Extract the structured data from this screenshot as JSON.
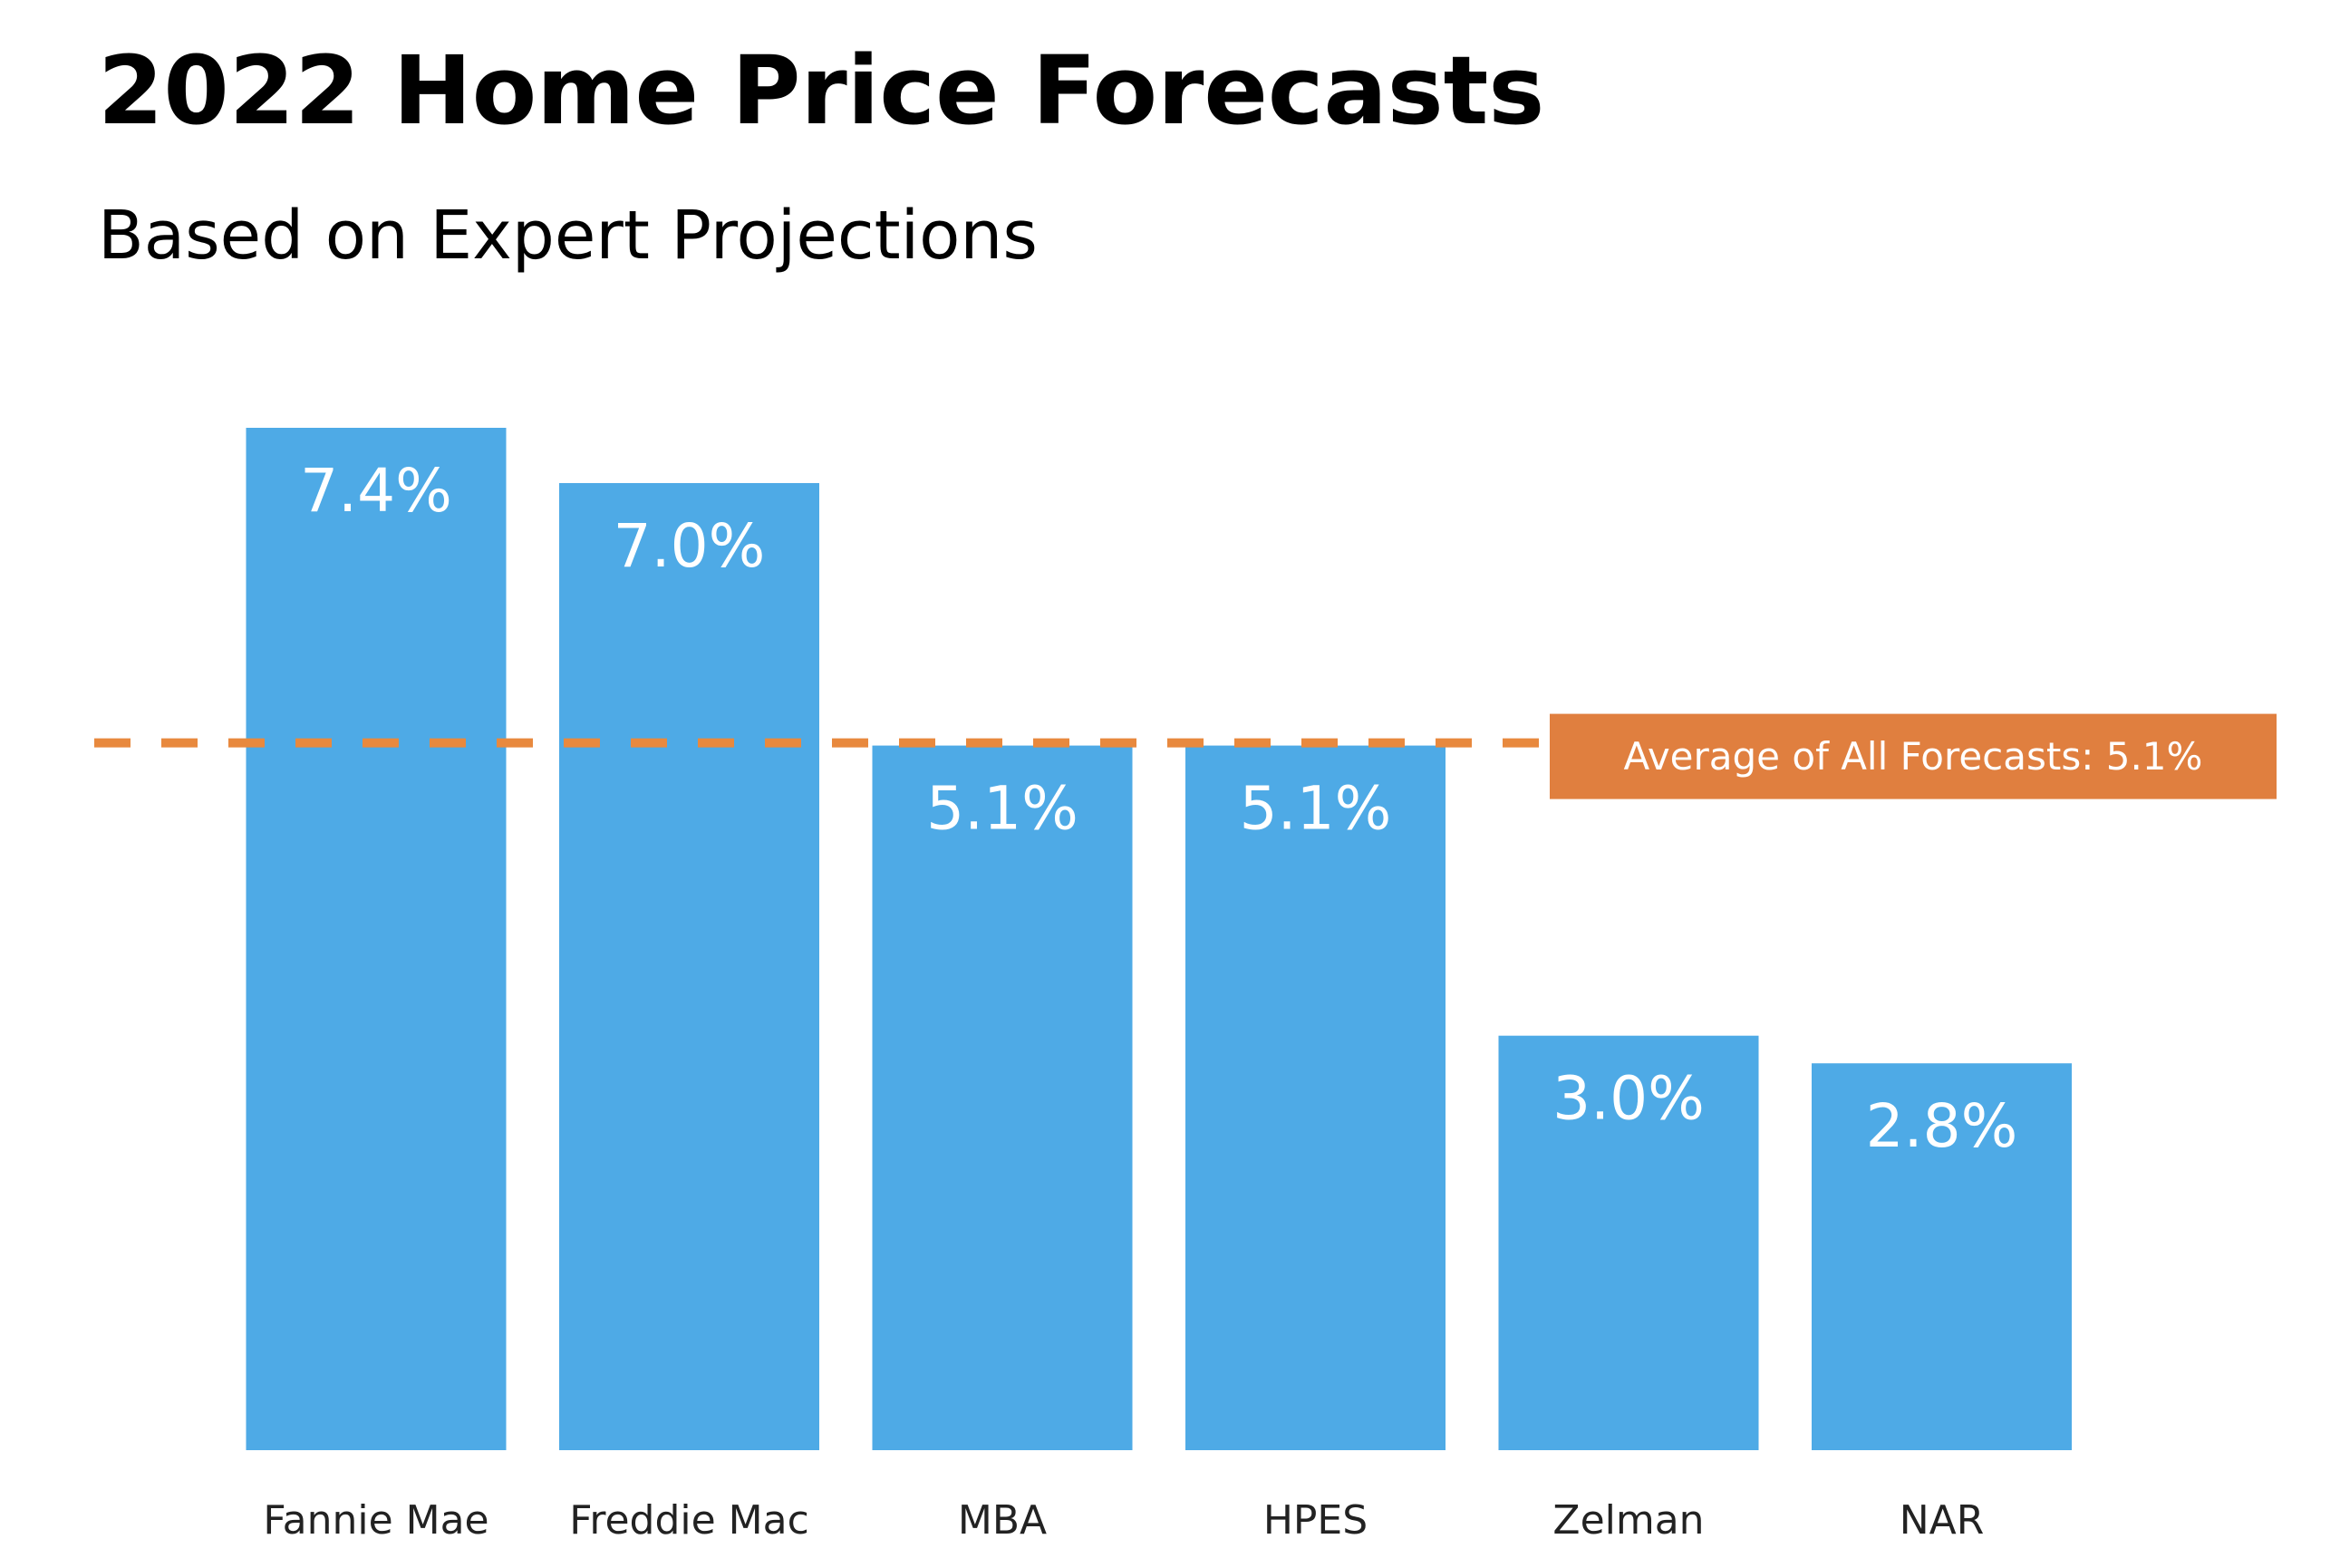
{
  "colors": {
    "bar": "#4eaae6",
    "average_line": "#e8893e",
    "average_box": "#e07f3f",
    "bar_label_text": "#ffffff",
    "category_text": "#222222"
  },
  "chart_data": {
    "type": "bar",
    "title": "2022 Home Price Forecasts",
    "subtitle": "Based on Expert Projections",
    "xlabel": "",
    "ylabel": "",
    "categories": [
      "Fannie Mae",
      "Freddie Mac",
      "MBA",
      "HPES",
      "Zelman",
      "NAR"
    ],
    "values": [
      7.4,
      7.0,
      5.1,
      5.1,
      3.0,
      2.8
    ],
    "value_labels": [
      "7.4%",
      "7.0%",
      "5.1%",
      "5.1%",
      "3.0%",
      "2.8%"
    ],
    "ylim": [
      0,
      7.4
    ],
    "grid": false,
    "legend": "none",
    "reference_line": {
      "value": 5.1,
      "style": "dashed",
      "label": "Average of All Forecasts: 5.1%"
    }
  }
}
